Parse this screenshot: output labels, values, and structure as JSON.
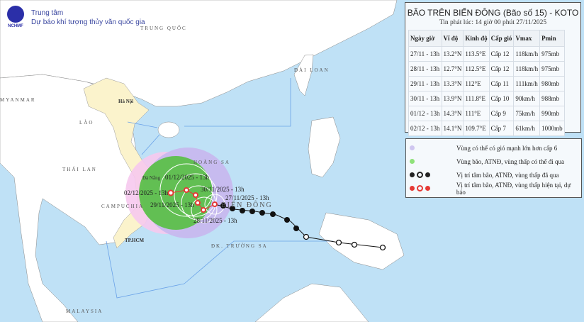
{
  "header": {
    "logo_text": "NCHMF",
    "line1": "Trung tâm",
    "line2": "Dự báo khí tượng thủy văn quốc gia"
  },
  "map_labels": {
    "china": "TRUNG QUỐC",
    "hanoi": "Hà Nội",
    "laos": "LÀO",
    "thailand": "THÁI LAN",
    "myanmar": "MYANMAR",
    "cambodia": "CAMPUCHIA",
    "hcm": "TP.HCM",
    "danang": "Đà Nẵng",
    "hoangsa": "HOÀNG SA",
    "truongsa": "ĐK. TRƯỜNG SA",
    "biendong": "BIỂN ĐÔNG",
    "taiwan": "ĐÀI LOAN",
    "malaysia": "MALAYSIA"
  },
  "track_labels": [
    "27/11/2025 - 13h",
    "28/11/2025 - 13h",
    "29/11/2025 - 13h",
    "30/11/2025 - 13h",
    "01/12/2025 - 13h",
    "02/12/2025 - 13h"
  ],
  "bulletin": {
    "title": "BÃO TRÊN BIỂN ĐÔNG (Bão số 15) - KOTO",
    "issued": "Tin phát lúc: 14 giờ 00 phút 27/11/2025",
    "columns": [
      "Ngày giờ",
      "Vĩ độ",
      "Kinh độ",
      "Cấp gió",
      "Vmax",
      "Pmin"
    ],
    "rows": [
      [
        "27/11 - 13h",
        "13.2°N",
        "113.5°E",
        "Cấp 12",
        "118km/h",
        "975mb"
      ],
      [
        "28/11 - 13h",
        "12.7°N",
        "112.5°E",
        "Cấp 12",
        "118km/h",
        "975mb"
      ],
      [
        "29/11 - 13h",
        "13.3°N",
        "112°E",
        "Cấp 11",
        "111km/h",
        "980mb"
      ],
      [
        "30/11 - 13h",
        "13.9°N",
        "111.8°E",
        "Cấp 10",
        "90km/h",
        "988mb"
      ],
      [
        "01/12 - 13h",
        "14.3°N",
        "111°E",
        "Cấp 9",
        "75km/h",
        "990mb"
      ],
      [
        "02/12 - 13h",
        "14.1°N",
        "109.7°E",
        "Cấp 7",
        "61km/h",
        "1000mb"
      ]
    ]
  },
  "legend": [
    {
      "icon": "purple-dot",
      "text": "Vùng có thể có gió mạnh lớn hơn cấp 6"
    },
    {
      "icon": "green-dot",
      "text": "Vùng bão, ATNĐ, vùng thấp có thể đi qua"
    },
    {
      "icon": "black-storm-symbols",
      "text": "Vị trí tâm bão, ATNĐ, vùng thấp đã qua"
    },
    {
      "icon": "red-storm-symbols",
      "text": "Vị trí tâm bão, ATNĐ, vùng thấp hiện tại, dự báo"
    }
  ],
  "colors": {
    "sea": "#bfe1f6",
    "vietnam": "#fbf3cc",
    "strong_wind_zone": "#c7b8ee",
    "storm_zone": "#5cbf4a",
    "forecast": "#e53935",
    "past": "#111111"
  }
}
